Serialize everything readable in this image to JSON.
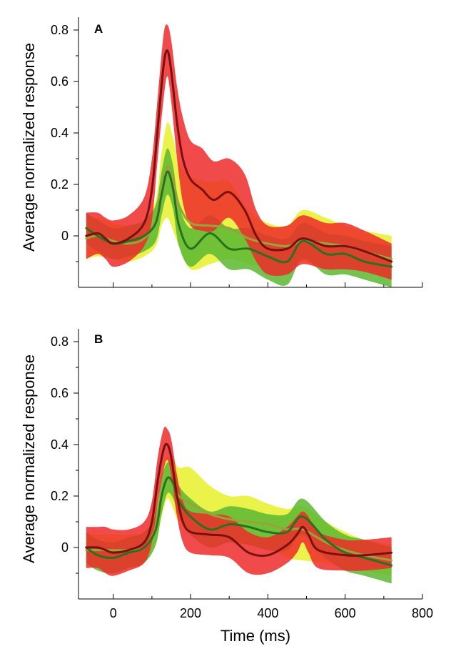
{
  "chart_data": [
    {
      "type": "line",
      "panel_label": "A",
      "ylabel": "Average normalized response",
      "xlabel": "",
      "xlim": [
        -90,
        800
      ],
      "ylim": [
        -0.2,
        0.85
      ],
      "x_ticks": [
        0,
        200,
        400,
        600,
        800
      ],
      "y_ticks": [
        0,
        0.2,
        0.4,
        0.6,
        0.8
      ],
      "y_tick_labels": [
        "0",
        "0.2",
        "0.4",
        "0.6",
        "0.8"
      ],
      "show_x_tick_labels": false,
      "grid": false,
      "legend": "none",
      "series": [
        {
          "color": "#e8f02a",
          "line_color": "#9aa23a",
          "x": [
            -70,
            -40,
            0,
            40,
            80,
            110,
            125,
            140,
            155,
            170,
            200,
            250,
            300,
            350,
            400,
            450,
            490,
            550,
            600,
            650,
            720
          ],
          "y": [
            -0.01,
            0.0,
            -0.02,
            -0.03,
            -0.01,
            0.06,
            0.18,
            0.27,
            0.22,
            0.12,
            0.05,
            0.04,
            0.03,
            -0.01,
            -0.03,
            -0.04,
            -0.02,
            -0.03,
            -0.04,
            -0.06,
            -0.09
          ],
          "lower": [
            -0.09,
            -0.08,
            -0.09,
            -0.1,
            -0.08,
            -0.04,
            0.04,
            0.07,
            0.02,
            -0.04,
            -0.13,
            -0.11,
            -0.09,
            -0.11,
            -0.12,
            -0.13,
            -0.1,
            -0.12,
            -0.12,
            -0.14,
            -0.17
          ],
          "upper": [
            0.07,
            0.07,
            0.05,
            0.04,
            0.06,
            0.14,
            0.32,
            0.44,
            0.38,
            0.28,
            0.23,
            0.21,
            0.21,
            0.1,
            0.05,
            0.04,
            0.1,
            0.07,
            0.04,
            0.02,
            0.0
          ]
        },
        {
          "color": "#5cb832",
          "line_color": "#2a7020",
          "x": [
            -70,
            -40,
            0,
            40,
            80,
            110,
            125,
            140,
            155,
            170,
            200,
            250,
            300,
            350,
            400,
            450,
            490,
            550,
            600,
            650,
            720
          ],
          "y": [
            0.03,
            0.0,
            -0.03,
            -0.02,
            0.0,
            0.05,
            0.16,
            0.25,
            0.18,
            0.04,
            -0.05,
            0.01,
            -0.05,
            -0.05,
            -0.08,
            -0.1,
            -0.02,
            -0.07,
            -0.07,
            -0.1,
            -0.12
          ],
          "lower": [
            -0.03,
            -0.06,
            -0.09,
            -0.08,
            -0.06,
            -0.02,
            0.08,
            0.16,
            0.1,
            -0.04,
            -0.12,
            -0.07,
            -0.13,
            -0.13,
            -0.17,
            -0.19,
            -0.09,
            -0.15,
            -0.15,
            -0.17,
            -0.2
          ],
          "upper": [
            0.09,
            0.06,
            0.03,
            0.04,
            0.06,
            0.12,
            0.25,
            0.34,
            0.27,
            0.12,
            0.03,
            0.08,
            0.03,
            0.03,
            0.0,
            -0.01,
            0.05,
            0.01,
            0.0,
            -0.02,
            -0.04
          ]
        },
        {
          "color": "#ee2a2a",
          "line_color": "#7a1010",
          "x": [
            -70,
            -40,
            -20,
            0,
            40,
            80,
            100,
            115,
            130,
            140,
            150,
            165,
            180,
            200,
            230,
            260,
            300,
            340,
            370,
            400,
            450,
            490,
            550,
            600,
            650,
            720
          ],
          "y": [
            0.0,
            0.01,
            -0.01,
            -0.03,
            -0.01,
            0.05,
            0.18,
            0.42,
            0.66,
            0.72,
            0.64,
            0.44,
            0.3,
            0.22,
            0.18,
            0.14,
            0.17,
            0.1,
            0.0,
            -0.05,
            -0.05,
            -0.01,
            -0.04,
            -0.04,
            -0.06,
            -0.1
          ],
          "lower": [
            -0.09,
            -0.07,
            -0.09,
            -0.12,
            -0.1,
            -0.04,
            0.06,
            0.3,
            0.53,
            0.62,
            0.52,
            0.3,
            0.13,
            0.04,
            0.02,
            0.02,
            0.07,
            -0.01,
            -0.1,
            -0.15,
            -0.15,
            -0.11,
            -0.13,
            -0.13,
            -0.14,
            -0.17
          ],
          "upper": [
            0.09,
            0.09,
            0.07,
            0.06,
            0.08,
            0.15,
            0.3,
            0.54,
            0.78,
            0.82,
            0.76,
            0.58,
            0.46,
            0.37,
            0.34,
            0.29,
            0.3,
            0.24,
            0.1,
            0.04,
            0.04,
            0.08,
            0.05,
            0.05,
            0.02,
            -0.03
          ]
        }
      ]
    },
    {
      "type": "line",
      "panel_label": "B",
      "ylabel": "Average normalized response",
      "xlabel": "Time (ms)",
      "xlim": [
        -90,
        800
      ],
      "ylim": [
        -0.2,
        0.85
      ],
      "x_ticks": [
        0,
        200,
        400,
        600,
        800
      ],
      "x_tick_labels": [
        "0",
        "200",
        "400",
        "600",
        "800"
      ],
      "y_ticks": [
        0,
        0.2,
        0.4,
        0.6,
        0.8
      ],
      "y_tick_labels": [
        "0",
        "0.2",
        "0.4",
        "0.6",
        "0.8"
      ],
      "show_x_tick_labels": true,
      "grid": false,
      "legend": "none",
      "series": [
        {
          "color": "#e8f02a",
          "line_color": "#9aa23a",
          "x": [
            -70,
            -40,
            0,
            40,
            80,
            110,
            125,
            140,
            155,
            170,
            200,
            250,
            300,
            350,
            400,
            450,
            490,
            550,
            600,
            650,
            720
          ],
          "y": [
            -0.01,
            -0.01,
            -0.01,
            -0.01,
            0.0,
            0.08,
            0.2,
            0.27,
            0.24,
            0.2,
            0.17,
            0.13,
            0.11,
            0.1,
            0.09,
            0.07,
            0.07,
            0.02,
            -0.01,
            -0.03,
            -0.05
          ],
          "lower": [
            -0.07,
            -0.07,
            -0.07,
            -0.07,
            -0.06,
            0.02,
            0.12,
            0.19,
            0.15,
            0.1,
            0.06,
            0.04,
            0.02,
            0.01,
            0.0,
            -0.04,
            -0.05,
            -0.06,
            -0.08,
            -0.09,
            -0.11
          ],
          "upper": [
            0.05,
            0.05,
            0.05,
            0.05,
            0.06,
            0.14,
            0.28,
            0.35,
            0.34,
            0.31,
            0.31,
            0.24,
            0.2,
            0.2,
            0.17,
            0.15,
            0.16,
            0.1,
            0.06,
            0.03,
            0.01
          ]
        },
        {
          "color": "#5cb832",
          "line_color": "#2a7020",
          "x": [
            -70,
            -40,
            0,
            40,
            80,
            110,
            125,
            140,
            155,
            170,
            200,
            250,
            300,
            350,
            400,
            450,
            490,
            550,
            600,
            650,
            720
          ],
          "y": [
            0.0,
            -0.03,
            -0.04,
            -0.02,
            0.0,
            0.07,
            0.2,
            0.27,
            0.25,
            0.18,
            0.12,
            0.07,
            0.09,
            0.08,
            0.06,
            0.06,
            0.12,
            0.03,
            -0.02,
            -0.04,
            -0.07
          ],
          "lower": [
            -0.06,
            -0.09,
            -0.1,
            -0.08,
            -0.06,
            0.01,
            0.13,
            0.21,
            0.19,
            0.12,
            0.05,
            0.0,
            0.02,
            0.01,
            -0.01,
            -0.01,
            0.05,
            -0.04,
            -0.09,
            -0.11,
            -0.14
          ],
          "upper": [
            0.06,
            0.03,
            0.02,
            0.04,
            0.06,
            0.13,
            0.27,
            0.33,
            0.31,
            0.24,
            0.19,
            0.14,
            0.16,
            0.15,
            0.13,
            0.13,
            0.19,
            0.1,
            0.05,
            0.03,
            0.0
          ]
        },
        {
          "color": "#ee2a2a",
          "line_color": "#7a1010",
          "x": [
            -70,
            -40,
            -20,
            0,
            40,
            80,
            100,
            115,
            130,
            140,
            150,
            165,
            180,
            200,
            250,
            300,
            350,
            400,
            450,
            475,
            490,
            505,
            530,
            600,
            650,
            720
          ],
          "y": [
            0.0,
            0.0,
            -0.01,
            -0.02,
            -0.01,
            0.02,
            0.1,
            0.26,
            0.38,
            0.4,
            0.35,
            0.2,
            0.1,
            0.06,
            0.05,
            0.04,
            -0.02,
            -0.03,
            0.01,
            0.05,
            0.08,
            0.05,
            -0.01,
            -0.03,
            -0.03,
            -0.02
          ],
          "lower": [
            -0.08,
            -0.08,
            -0.1,
            -0.11,
            -0.09,
            -0.06,
            0.02,
            0.17,
            0.3,
            0.34,
            0.28,
            0.12,
            0.02,
            -0.02,
            -0.03,
            -0.04,
            -0.1,
            -0.1,
            -0.06,
            -0.02,
            0.02,
            -0.02,
            -0.08,
            -0.09,
            -0.09,
            -0.08
          ],
          "upper": [
            0.08,
            0.08,
            0.08,
            0.07,
            0.07,
            0.1,
            0.18,
            0.35,
            0.46,
            0.46,
            0.42,
            0.28,
            0.18,
            0.14,
            0.13,
            0.12,
            0.06,
            0.04,
            0.08,
            0.12,
            0.14,
            0.12,
            0.06,
            0.03,
            0.03,
            0.04
          ]
        }
      ]
    }
  ]
}
